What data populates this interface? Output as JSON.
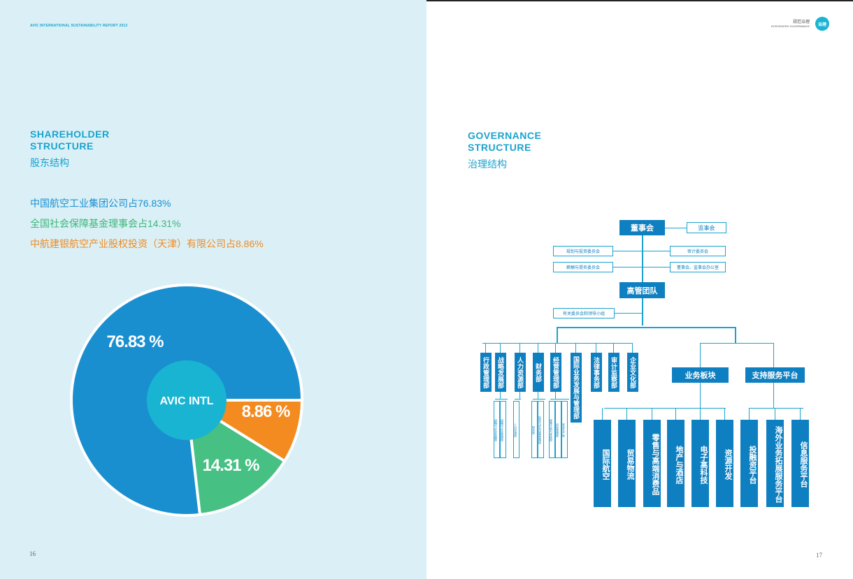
{
  "left_page": {
    "header": "AVIC INTERNATIONAL SUSTAINABILITY REPORT 2013",
    "title_line1": "SHAREHOLDER",
    "title_line2": "STRUCTURE",
    "subtitle": "股东结构",
    "legend": [
      {
        "text": "中国航空工业集团公司占76.83%",
        "color": "#1a8fd0"
      },
      {
        "text": "全国社会保障基金理事会占14.31%",
        "color": "#3cb878"
      },
      {
        "text": "中航建银航空产业股权投资（天津）有限公司占8.86%",
        "color": "#f18a21"
      }
    ],
    "page_number": "16"
  },
  "chart_data": {
    "type": "pie",
    "title": "股东结构",
    "center_label": "AVIC INTL",
    "slices": [
      {
        "label": "中国航空工业集团公司",
        "value": 76.83,
        "display": "76.83 %",
        "color": "#1a8fd0"
      },
      {
        "label": "全国社会保障基金理事会",
        "value": 14.31,
        "display": "14.31 %",
        "color": "#47c084"
      },
      {
        "label": "中航建银航空产业股权投资（天津）有限公司",
        "value": 8.86,
        "display": "8.86 %",
        "color": "#f38b21"
      }
    ]
  },
  "right_page": {
    "header_cn": "规范治理",
    "header_en": "INTEGRATED GOVERNANCE",
    "badge": "治理",
    "title_line1": "GOVERNANCE",
    "title_line2": "STRUCTURE",
    "subtitle": "治理结构",
    "page_number": "17"
  },
  "org": {
    "board": "董事会",
    "supervisory": "监事会",
    "strategy_committee": "规划与投资委员会",
    "audit_committee": "审计委员会",
    "nomination_committee": "薪酬与提名委员会",
    "board_office": "董事会、监事会办公室",
    "management": "高管团队",
    "special_committees": "有关委员会和领导小组",
    "departments": [
      "行政管理部",
      "战略发展部",
      "人力资源部",
      "财务部",
      "经营管理部",
      "国际业务发展与管理部",
      "法律事务部",
      "审计监察部",
      "企业文化部"
    ],
    "sub_units": [
      [
        "战略与企业发展部",
        "战略与企业管理部"
      ],
      [
        "人力资源部"
      ],
      [
        "财务部",
        "投资与资本运营管理部"
      ],
      [
        "经营计划与考核部",
        "风险管理部",
        "安全生产部"
      ]
    ],
    "business_segments": "业务板块",
    "support_platforms": "支持服务平台",
    "segments": [
      "国际航空",
      "贸易物流",
      "零售与高端消费品",
      "地产与酒店",
      "电子高科技",
      "资源开发"
    ],
    "platforms": [
      "投融资平台",
      "海外业务拓展服务平台",
      "信息服务平台"
    ]
  }
}
